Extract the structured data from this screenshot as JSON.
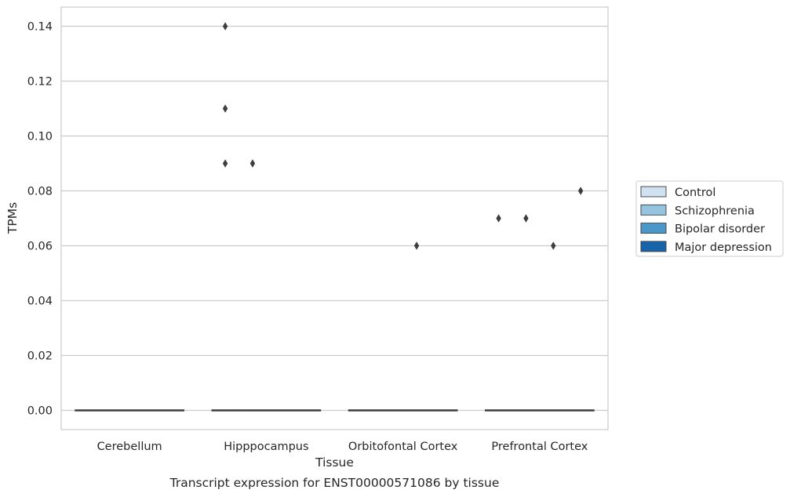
{
  "chart_data": {
    "type": "box",
    "xlabel": "Tissue",
    "ylabel": "TPMs",
    "caption": "Transcript expression for ENST00000571086 by tissue",
    "categories": [
      "Cerebellum",
      "Hipppocampus",
      "Orbitofontal Cortex",
      "Prefrontal Cortex"
    ],
    "ylim": [
      -0.007,
      0.147
    ],
    "yticks": [
      0.0,
      0.02,
      0.04,
      0.06,
      0.08,
      0.1,
      0.12,
      0.14
    ],
    "ytick_labels": [
      "0.00",
      "0.02",
      "0.04",
      "0.06",
      "0.08",
      "0.10",
      "0.12",
      "0.14"
    ],
    "grid": "horizontal",
    "legend_position": "right",
    "series": [
      {
        "name": "Control",
        "color": "#d0e1f2",
        "medians": [
          0,
          0,
          0,
          0
        ],
        "outliers": [
          [],
          [
            0.14,
            0.11,
            0.09
          ],
          [],
          [
            0.07
          ]
        ]
      },
      {
        "name": "Schizophrenia",
        "color": "#94c4df",
        "medians": [
          0,
          0,
          0,
          0
        ],
        "outliers": [
          [],
          [
            0.09
          ],
          [],
          [
            0.07
          ]
        ]
      },
      {
        "name": "Bipolar disorder",
        "color": "#4a98c9",
        "medians": [
          0,
          0,
          0,
          0
        ],
        "outliers": [
          [],
          [],
          [
            0.06
          ],
          [
            0.06
          ]
        ]
      },
      {
        "name": "Major depression",
        "color": "#1764ab",
        "medians": [
          0,
          0,
          0,
          0
        ],
        "outliers": [
          [],
          [],
          [],
          [
            0.08
          ]
        ]
      }
    ]
  }
}
